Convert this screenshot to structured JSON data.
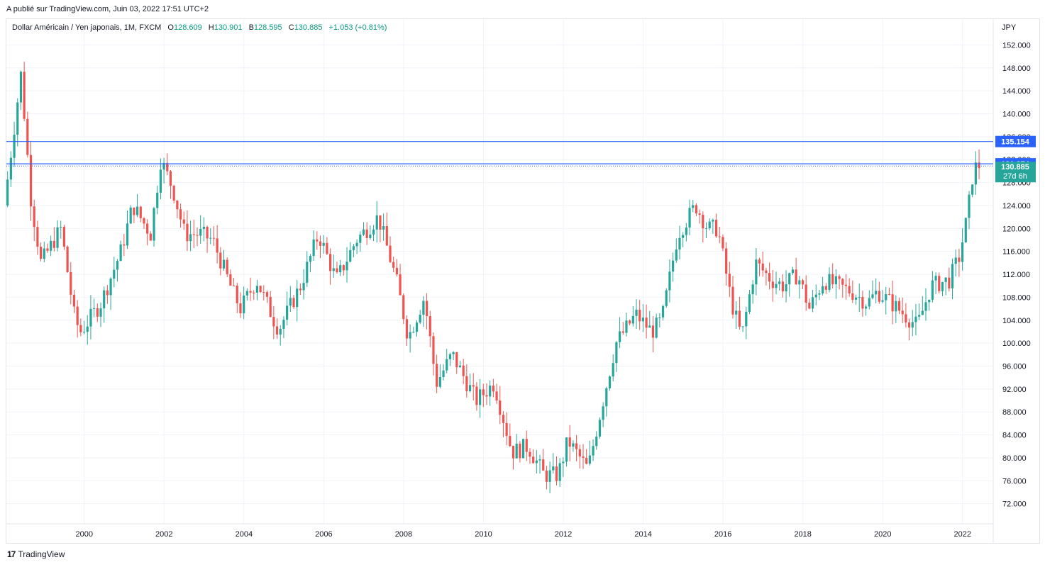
{
  "header": {
    "published": "A publié sur TradingView.com, Juin 03, 2022 17:51 UTC+2"
  },
  "legend": {
    "symbol": "Dollar Américain / Yen japonais, 1M, FXCM",
    "o_label": "O",
    "o_value": "128.609",
    "h_label": "H",
    "h_value": "130.901",
    "b_label": "B",
    "b_value": "128.595",
    "c_label": "C",
    "c_value": "130.885",
    "change": "+1.053 (+0.81%)"
  },
  "footer": {
    "brand": "TradingView"
  },
  "colors": {
    "up": "#26a69a",
    "down": "#ef5350",
    "line": "#2962ff",
    "grid": "#f0f3fa",
    "axis_text": "#131722"
  },
  "chart_data": {
    "type": "candlestick",
    "title": "Dollar Américain / Yen japonais, 1M, FXCM",
    "currency_label": "JPY",
    "y_ticks": [
      "152.000",
      "148.000",
      "144.000",
      "140.000",
      "136.000",
      "132.000",
      "128.000",
      "124.000",
      "120.000",
      "116.000",
      "112.000",
      "108.000",
      "104.000",
      "100.000",
      "96.000",
      "92.000",
      "88.000",
      "84.000",
      "80.000",
      "76.000",
      "72.000"
    ],
    "x_ticks": [
      "2000",
      "2002",
      "2004",
      "2006",
      "2008",
      "2010",
      "2012",
      "2014",
      "2016",
      "2018",
      "2020",
      "2022"
    ],
    "ylim": [
      68.5,
      156.5
    ],
    "xlim": [
      1998.05,
      2022.75
    ],
    "grid": true,
    "horizontal_lines": [
      {
        "value": 135.154,
        "label": "135.154"
      },
      {
        "value": 131.274,
        "label": "131.274"
      }
    ],
    "last_price": {
      "value": 130.885,
      "label": "130.885",
      "countdown": "27d 6h"
    },
    "anchor_points": [
      [
        1998.08,
        124.0
      ],
      [
        1998.5,
        147.0
      ],
      [
        1998.75,
        125.0
      ],
      [
        1999.0,
        114.0
      ],
      [
        1999.5,
        120.0
      ],
      [
        1999.85,
        104.0
      ],
      [
        2000.0,
        102.0
      ],
      [
        2000.5,
        107.0
      ],
      [
        2001.0,
        116.0
      ],
      [
        2001.3,
        124.0
      ],
      [
        2001.75,
        119.0
      ],
      [
        2002.0,
        132.0
      ],
      [
        2002.3,
        127.0
      ],
      [
        2002.6,
        119.0
      ],
      [
        2003.0,
        119.0
      ],
      [
        2003.3,
        118.0
      ],
      [
        2003.8,
        109.0
      ],
      [
        2004.0,
        106.0
      ],
      [
        2004.4,
        111.0
      ],
      [
        2004.9,
        103.0
      ],
      [
        2005.0,
        103.0
      ],
      [
        2005.5,
        110.0
      ],
      [
        2005.95,
        119.0
      ],
      [
        2006.4,
        111.0
      ],
      [
        2006.9,
        118.0
      ],
      [
        2007.45,
        122.0
      ],
      [
        2007.9,
        111.0
      ],
      [
        2008.2,
        101.0
      ],
      [
        2008.6,
        108.0
      ],
      [
        2008.9,
        93.0
      ],
      [
        2009.3,
        98.0
      ],
      [
        2009.9,
        90.0
      ],
      [
        2010.35,
        93.0
      ],
      [
        2010.8,
        81.0
      ],
      [
        2011.2,
        82.0
      ],
      [
        2011.6,
        77.0
      ],
      [
        2011.95,
        77.0
      ],
      [
        2012.2,
        83.0
      ],
      [
        2012.7,
        78.0
      ],
      [
        2012.95,
        86.0
      ],
      [
        2013.4,
        100.0
      ],
      [
        2013.9,
        105.0
      ],
      [
        2014.3,
        102.0
      ],
      [
        2014.55,
        104.0
      ],
      [
        2014.95,
        119.0
      ],
      [
        2015.4,
        124.0
      ],
      [
        2015.7,
        120.0
      ],
      [
        2015.95,
        120.0
      ],
      [
        2016.3,
        107.0
      ],
      [
        2016.55,
        101.0
      ],
      [
        2016.9,
        114.0
      ],
      [
        2017.3,
        111.0
      ],
      [
        2017.6,
        110.0
      ],
      [
        2017.95,
        112.0
      ],
      [
        2018.25,
        106.0
      ],
      [
        2018.6,
        111.0
      ],
      [
        2018.95,
        110.0
      ],
      [
        2019.3,
        109.0
      ],
      [
        2019.7,
        107.0
      ],
      [
        2019.95,
        109.0
      ],
      [
        2020.3,
        107.0
      ],
      [
        2020.95,
        103.0
      ],
      [
        2021.3,
        110.0
      ],
      [
        2021.75,
        111.0
      ],
      [
        2022.0,
        115.0
      ],
      [
        2022.2,
        122.0
      ],
      [
        2022.35,
        130.0
      ],
      [
        2022.45,
        131.0
      ]
    ]
  }
}
